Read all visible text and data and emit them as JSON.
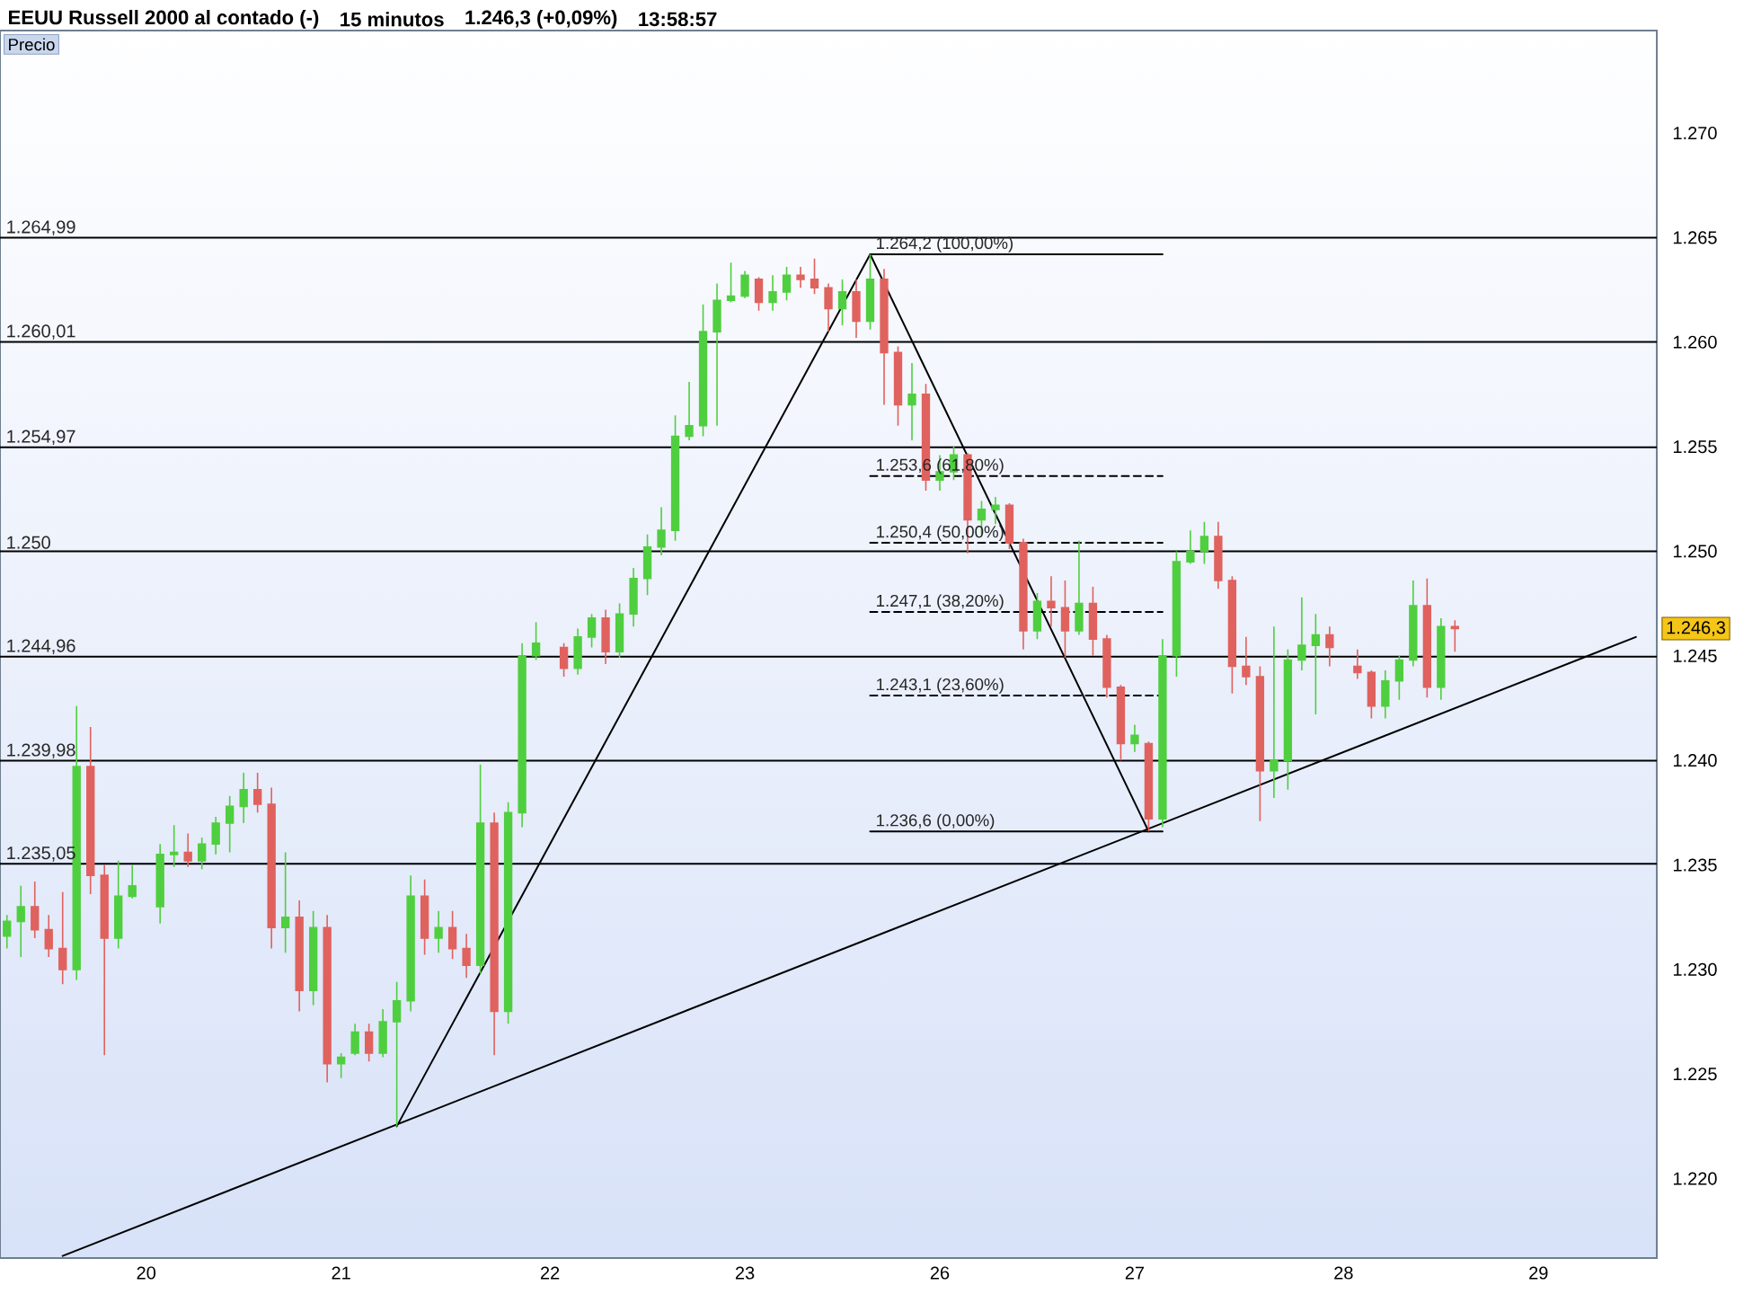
{
  "chart_data": {
    "type": "candlestick",
    "title": "EEUU Russell 2000 al contado (-)",
    "subtitle": "15 minutos",
    "ylabel": "Precio",
    "annotations": [
      "1.246,3 (+0,09%)",
      "13:58:57",
      {
        "text": "1.246,3",
        "y": 1246.3
      }
    ],
    "categories": [
      null,
      null,
      null,
      null,
      null,
      null,
      null,
      null,
      null,
      null,
      "20",
      null,
      null,
      null,
      null,
      null,
      null,
      null,
      null,
      null,
      null,
      null,
      null,
      null,
      "21",
      null,
      null,
      null,
      null,
      null,
      null,
      null,
      null,
      null,
      null,
      null,
      null,
      null,
      null,
      "22",
      null,
      null,
      null,
      null,
      null,
      null,
      null,
      null,
      null,
      null,
      null,
      null,
      null,
      "23",
      null,
      null,
      null,
      null,
      null,
      null,
      null,
      null,
      null,
      null,
      null,
      null,
      null,
      "26",
      null,
      null,
      null,
      null,
      null,
      null,
      null,
      null,
      null,
      null,
      null,
      null,
      null,
      "27",
      null,
      null,
      null,
      null,
      null,
      null,
      null,
      null,
      null,
      null,
      null,
      null,
      null,
      null,
      "28",
      null,
      null,
      null,
      null,
      null,
      null,
      null,
      null,
      null,
      null,
      null,
      null,
      null,
      "29",
      null,
      null,
      null,
      null,
      null,
      null,
      null,
      null
    ],
    "ohlc": [
      [
        1231.6,
        1232.6,
        1231.0,
        1232.3
      ],
      [
        1232.3,
        1234.0,
        1230.6,
        1233.0
      ],
      [
        1233.0,
        1234.2,
        1231.5,
        1231.9
      ],
      [
        1231.9,
        1232.6,
        1230.6,
        1231.0
      ],
      [
        1231.0,
        1233.7,
        1229.3,
        1230.0
      ],
      [
        1230.0,
        1242.6,
        1229.5,
        1239.7
      ],
      [
        1239.7,
        1241.6,
        1233.6,
        1234.5
      ],
      [
        1234.5,
        1235.0,
        1225.9,
        1231.5
      ],
      [
        1231.5,
        1235.2,
        1231.0,
        1233.5
      ],
      [
        1233.5,
        1235.0,
        1233.4,
        1234.0
      ],
      null,
      [
        1233.0,
        1236.0,
        1232.2,
        1235.5
      ],
      [
        1235.5,
        1236.9,
        1234.9,
        1235.6
      ],
      [
        1235.6,
        1236.5,
        1234.9,
        1235.2
      ],
      [
        1235.2,
        1236.3,
        1234.8,
        1236.0
      ],
      [
        1236.0,
        1237.3,
        1235.5,
        1237.0
      ],
      [
        1237.0,
        1238.3,
        1235.6,
        1237.8
      ],
      [
        1237.8,
        1239.4,
        1237.0,
        1238.6
      ],
      [
        1238.6,
        1239.4,
        1237.5,
        1237.9
      ],
      [
        1237.9,
        1238.7,
        1231.0,
        1232.0
      ],
      [
        1232.0,
        1235.6,
        1230.8,
        1232.5
      ],
      [
        1232.5,
        1233.3,
        1228.0,
        1229.0
      ],
      [
        1229.0,
        1232.8,
        1228.3,
        1232.0
      ],
      [
        1232.0,
        1232.6,
        1224.6,
        1225.5
      ],
      [
        1225.5,
        1226.0,
        1224.8,
        1225.8
      ],
      [
        1226.0,
        1227.4,
        1225.9,
        1227.0
      ],
      [
        1227.0,
        1227.4,
        1225.6,
        1226.0
      ],
      [
        1226.0,
        1228.1,
        1225.8,
        1227.5
      ],
      [
        1227.5,
        1229.4,
        1222.5,
        1228.5
      ],
      [
        1228.5,
        1234.5,
        1228.0,
        1233.5
      ],
      [
        1233.5,
        1234.3,
        1230.7,
        1231.5
      ],
      [
        1231.5,
        1232.8,
        1230.8,
        1232.0
      ],
      [
        1232.0,
        1232.8,
        1230.5,
        1231.0
      ],
      [
        1231.0,
        1231.7,
        1229.6,
        1230.2
      ],
      [
        1230.2,
        1239.8,
        1229.8,
        1237.0
      ],
      [
        1237.0,
        1237.5,
        1225.9,
        1228.0
      ],
      [
        1228.0,
        1238.0,
        1227.4,
        1237.5
      ],
      [
        1237.5,
        1245.6,
        1236.8,
        1245.0
      ],
      [
        1245.0,
        1246.6,
        1244.8,
        1245.6
      ],
      null,
      [
        1245.4,
        1245.6,
        1244.0,
        1244.4
      ],
      [
        1244.4,
        1246.3,
        1244.1,
        1245.9
      ],
      [
        1245.9,
        1247.0,
        1245.4,
        1246.8
      ],
      [
        1246.8,
        1247.2,
        1244.6,
        1245.2
      ],
      [
        1245.2,
        1247.5,
        1244.9,
        1247.0
      ],
      [
        1247.0,
        1249.2,
        1246.4,
        1248.7
      ],
      [
        1248.7,
        1250.8,
        1247.9,
        1250.2
      ],
      [
        1250.2,
        1252.1,
        1249.8,
        1251.0
      ],
      [
        1251.0,
        1256.5,
        1250.5,
        1255.5
      ],
      [
        1255.5,
        1258.1,
        1255.3,
        1256.0
      ],
      [
        1256.0,
        1261.8,
        1255.5,
        1260.5
      ],
      [
        1260.5,
        1262.8,
        1256.0,
        1262.0
      ],
      [
        1262.0,
        1263.8,
        1261.9,
        1262.2
      ],
      [
        1262.2,
        1263.4,
        1262.1,
        1263.2
      ],
      [
        1263.0,
        1263.1,
        1261.5,
        1261.9
      ],
      [
        1261.9,
        1263.2,
        1261.5,
        1262.4
      ],
      [
        1262.4,
        1263.6,
        1262.0,
        1263.2
      ],
      [
        1263.2,
        1263.6,
        1262.6,
        1263.0
      ],
      [
        1263.0,
        1264.0,
        1262.3,
        1262.6
      ],
      [
        1262.6,
        1262.8,
        1260.5,
        1261.6
      ],
      [
        1261.6,
        1263.0,
        1260.8,
        1262.4
      ],
      [
        1262.4,
        1263.0,
        1260.2,
        1261.0
      ],
      [
        1261.0,
        1264.2,
        1260.6,
        1263.0
      ],
      [
        1263.0,
        1263.5,
        1257.0,
        1259.5
      ],
      [
        1259.5,
        1259.8,
        1256.0,
        1257.0
      ],
      [
        1257.0,
        1259.0,
        1255.3,
        1257.5
      ],
      [
        1257.5,
        1258.0,
        1252.9,
        1253.4
      ],
      [
        1253.4,
        1254.6,
        1252.9,
        1253.8
      ],
      [
        1253.8,
        1255.0,
        1253.4,
        1254.6
      ],
      [
        1254.6,
        1254.7,
        1249.9,
        1251.5
      ],
      [
        1251.5,
        1252.4,
        1250.8,
        1252.0
      ],
      [
        1252.0,
        1252.6,
        1251.3,
        1252.2
      ],
      [
        1252.2,
        1252.3,
        1250.1,
        1250.4
      ],
      [
        1250.4,
        1250.6,
        1245.3,
        1246.2
      ],
      [
        1246.2,
        1248.0,
        1245.8,
        1247.6
      ],
      [
        1247.6,
        1248.8,
        1246.4,
        1247.3
      ],
      [
        1247.3,
        1248.6,
        1244.9,
        1246.2
      ],
      [
        1246.2,
        1250.5,
        1246.0,
        1247.5
      ],
      [
        1247.5,
        1248.3,
        1245.0,
        1245.8
      ],
      [
        1245.8,
        1246.0,
        1243.0,
        1243.5
      ],
      [
        1243.5,
        1243.6,
        1240.0,
        1240.8
      ],
      [
        1240.8,
        1241.7,
        1240.4,
        1241.2
      ],
      [
        1240.8,
        1240.9,
        1236.6,
        1237.2
      ],
      [
        1237.2,
        1245.8,
        1236.8,
        1245.0
      ],
      [
        1245.0,
        1250.0,
        1244.0,
        1249.5
      ],
      [
        1249.5,
        1251.0,
        1249.4,
        1250.0
      ],
      [
        1250.0,
        1251.4,
        1249.4,
        1250.7
      ],
      [
        1250.7,
        1251.4,
        1248.2,
        1248.6
      ],
      [
        1248.6,
        1248.8,
        1243.2,
        1244.5
      ],
      [
        1244.5,
        1245.9,
        1243.6,
        1244.0
      ],
      [
        1244.0,
        1244.5,
        1237.1,
        1239.5
      ],
      [
        1239.5,
        1246.4,
        1238.2,
        1240.0
      ],
      [
        1240.0,
        1245.3,
        1238.6,
        1244.8
      ],
      [
        1244.8,
        1247.8,
        1244.3,
        1245.5
      ],
      [
        1245.5,
        1247.0,
        1242.2,
        1246.0
      ],
      [
        1246.0,
        1246.4,
        1244.5,
        1245.4
      ],
      null,
      [
        1244.5,
        1245.3,
        1243.9,
        1244.2
      ],
      [
        1244.2,
        1244.3,
        1242.0,
        1242.6
      ],
      [
        1242.6,
        1244.3,
        1242.0,
        1243.8
      ],
      [
        1243.8,
        1245.0,
        1242.9,
        1244.8
      ],
      [
        1244.8,
        1248.6,
        1244.5,
        1247.4
      ],
      [
        1247.4,
        1248.7,
        1243.0,
        1243.5
      ],
      [
        1243.5,
        1246.8,
        1242.9,
        1246.4
      ],
      [
        1246.4,
        1246.7,
        1245.2,
        1246.3
      ],
      null,
      null,
      null,
      null,
      null,
      null,
      null,
      null,
      null,
      null,
      null,
      null,
      null,
      null
    ],
    "colors": [
      "#4fcf3f",
      "#4fcf3f",
      "#e0625e",
      "#e0625e",
      "#e0625e",
      "#4fcf3f",
      "#e0625e",
      "#e0625e",
      "#4fcf3f",
      "#4fcf3f",
      null,
      "#4fcf3f",
      "#4fcf3f",
      "#e0625e",
      "#4fcf3f",
      "#4fcf3f",
      "#4fcf3f",
      "#4fcf3f",
      "#e0625e",
      "#e0625e",
      "#4fcf3f",
      "#e0625e",
      "#4fcf3f",
      "#e0625e",
      "#4fcf3f",
      "#4fcf3f",
      "#e0625e",
      "#4fcf3f",
      "#4fcf3f",
      "#4fcf3f",
      "#e0625e",
      "#4fcf3f",
      "#e0625e",
      "#e0625e",
      "#4fcf3f",
      "#e0625e",
      "#4fcf3f",
      "#4fcf3f",
      "#4fcf3f",
      null,
      "#e0625e",
      "#4fcf3f",
      "#4fcf3f",
      "#e0625e",
      "#4fcf3f",
      "#4fcf3f",
      "#4fcf3f",
      "#4fcf3f",
      "#4fcf3f",
      "#4fcf3f",
      "#4fcf3f",
      "#4fcf3f",
      "#4fcf3f",
      "#4fcf3f",
      "#e0625e",
      "#4fcf3f",
      "#4fcf3f",
      "#e0625e",
      "#e0625e",
      "#e0625e",
      "#4fcf3f",
      "#e0625e",
      "#4fcf3f",
      "#e0625e",
      "#e0625e",
      "#4fcf3f",
      "#e0625e",
      "#4fcf3f",
      "#4fcf3f",
      "#e0625e",
      "#4fcf3f",
      "#4fcf3f",
      "#e0625e",
      "#e0625e",
      "#4fcf3f",
      "#e0625e",
      "#e0625e",
      "#4fcf3f",
      "#e0625e",
      "#e0625e",
      "#e0625e",
      "#4fcf3f",
      "#e0625e",
      "#4fcf3f",
      "#4fcf3f",
      "#4fcf3f",
      "#4fcf3f",
      "#e0625e",
      "#e0625e",
      "#e0625e",
      "#e0625e",
      "#4fcf3f",
      "#4fcf3f",
      "#4fcf3f",
      "#4fcf3f",
      "#e0625e",
      null,
      "#e0625e",
      "#e0625e",
      "#4fcf3f",
      "#4fcf3f",
      "#4fcf3f",
      "#e0625e",
      "#4fcf3f",
      "#e0625e",
      null,
      null,
      null,
      null,
      null,
      null,
      null,
      null,
      null,
      null,
      null,
      null,
      null,
      null
    ],
    "series": [
      {
        "type": "line",
        "color": "#000000",
        "line_style": "solid",
        "values": [
          null,
          null,
          null,
          null,
          1216.3,
          null,
          null,
          null,
          null,
          null,
          null,
          null,
          null,
          null,
          null,
          null,
          null,
          null,
          null,
          null,
          null,
          null,
          null,
          null,
          null,
          null,
          null,
          null,
          null,
          null,
          null,
          null,
          null,
          null,
          null,
          null,
          null,
          null,
          null,
          null,
          null,
          null,
          null,
          null,
          null,
          null,
          null,
          null,
          null,
          null,
          null,
          null,
          null,
          null,
          null,
          null,
          null,
          null,
          null,
          null,
          null,
          null,
          null,
          null,
          null,
          null,
          null,
          null,
          null,
          null,
          null,
          null,
          null,
          null,
          null,
          null,
          null,
          null,
          null,
          null,
          null,
          null,
          null,
          null,
          null,
          null,
          null,
          null,
          null,
          null,
          null,
          null,
          null,
          null,
          null,
          null,
          null,
          null,
          null,
          null,
          null,
          null,
          null,
          null,
          null,
          null,
          null,
          null,
          null,
          null,
          null,
          null,
          null,
          null,
          null,
          null,
          null,
          1245.9,
          null
        ]
      },
      {
        "type": "line",
        "color": "#000000",
        "line_style": "solid",
        "values": [
          null,
          null,
          null,
          null,
          null,
          null,
          null,
          null,
          null,
          null,
          null,
          null,
          null,
          null,
          null,
          null,
          null,
          null,
          null,
          null,
          null,
          null,
          null,
          null,
          null,
          null,
          null,
          null,
          1222.5,
          null,
          null,
          null,
          null,
          null,
          null,
          null,
          null,
          null,
          null,
          null,
          null,
          null,
          null,
          null,
          null,
          null,
          null,
          null,
          null,
          null,
          null,
          null,
          null,
          null,
          null,
          null,
          null,
          null,
          null,
          null,
          null,
          null,
          1264.2,
          null,
          null,
          null,
          null,
          null,
          null,
          null,
          null,
          null,
          null,
          null,
          null,
          null,
          null,
          null,
          null,
          null,
          null,
          null,
          1236.6,
          null,
          null,
          null,
          null,
          null,
          null,
          null,
          null,
          null,
          null,
          null,
          null,
          null,
          null,
          null,
          null,
          null,
          null,
          null,
          null,
          null,
          null,
          null,
          null,
          null,
          null,
          null,
          null,
          null,
          null,
          null,
          null,
          null,
          null,
          null,
          null
        ]
      },
      {
        "type": "line",
        "name": "1.264,2 (100,00%)",
        "color": "#000000",
        "line_style": "solid",
        "values": [
          null,
          null,
          null,
          null,
          null,
          null,
          null,
          null,
          null,
          null,
          null,
          null,
          null,
          null,
          null,
          null,
          null,
          null,
          null,
          null,
          null,
          null,
          null,
          null,
          null,
          null,
          null,
          null,
          null,
          null,
          null,
          null,
          null,
          null,
          null,
          null,
          null,
          null,
          null,
          null,
          null,
          null,
          null,
          null,
          null,
          null,
          null,
          null,
          null,
          null,
          null,
          null,
          null,
          null,
          null,
          null,
          null,
          null,
          null,
          null,
          null,
          null,
          1264.2,
          null,
          null,
          null,
          null,
          null,
          null,
          null,
          null,
          null,
          null,
          null,
          null,
          null,
          null,
          null,
          null,
          null,
          null,
          null,
          null,
          1264.2,
          null,
          null,
          null,
          null,
          null,
          null,
          null,
          null,
          null,
          null,
          null,
          null,
          null,
          null,
          null,
          null,
          null,
          null,
          null,
          null,
          null,
          null,
          null,
          null,
          null,
          null,
          null,
          null,
          null,
          null,
          null,
          null,
          null,
          null,
          null
        ]
      },
      {
        "type": "line",
        "name": "1.253,6 (61,80%)",
        "color": "#000000",
        "line_style": "dashed",
        "values": [
          null,
          null,
          null,
          null,
          null,
          null,
          null,
          null,
          null,
          null,
          null,
          null,
          null,
          null,
          null,
          null,
          null,
          null,
          null,
          null,
          null,
          null,
          null,
          null,
          null,
          null,
          null,
          null,
          null,
          null,
          null,
          null,
          null,
          null,
          null,
          null,
          null,
          null,
          null,
          null,
          null,
          null,
          null,
          null,
          null,
          null,
          null,
          null,
          null,
          null,
          null,
          null,
          null,
          null,
          null,
          null,
          null,
          null,
          null,
          null,
          null,
          null,
          1253.6,
          null,
          null,
          null,
          null,
          null,
          null,
          null,
          null,
          null,
          null,
          null,
          null,
          null,
          null,
          null,
          null,
          null,
          null,
          null,
          null,
          1253.6,
          null,
          null,
          null,
          null,
          null,
          null,
          null,
          null,
          null,
          null,
          null,
          null,
          null,
          null,
          null,
          null,
          null,
          null,
          null,
          null,
          null,
          null,
          null,
          null,
          null,
          null,
          null,
          null,
          null,
          null,
          null,
          null,
          null,
          null,
          null
        ]
      },
      {
        "type": "line",
        "name": "1.250,4 (50,00%)",
        "color": "#000000",
        "line_style": "dashed",
        "values": [
          null,
          null,
          null,
          null,
          null,
          null,
          null,
          null,
          null,
          null,
          null,
          null,
          null,
          null,
          null,
          null,
          null,
          null,
          null,
          null,
          null,
          null,
          null,
          null,
          null,
          null,
          null,
          null,
          null,
          null,
          null,
          null,
          null,
          null,
          null,
          null,
          null,
          null,
          null,
          null,
          null,
          null,
          null,
          null,
          null,
          null,
          null,
          null,
          null,
          null,
          null,
          null,
          null,
          null,
          null,
          null,
          null,
          null,
          null,
          null,
          null,
          null,
          1250.4,
          null,
          null,
          null,
          null,
          null,
          null,
          null,
          null,
          null,
          null,
          null,
          null,
          null,
          null,
          null,
          null,
          null,
          null,
          null,
          null,
          1250.4,
          null,
          null,
          null,
          null,
          null,
          null,
          null,
          null,
          null,
          null,
          null,
          null,
          null,
          null,
          null,
          null,
          null,
          null,
          null,
          null,
          null,
          null,
          null,
          null,
          null,
          null,
          null,
          null,
          null,
          null,
          null,
          null,
          null,
          null,
          null
        ]
      },
      {
        "type": "line",
        "name": "1.247,1 (38,20%)",
        "color": "#000000",
        "line_style": "dashed",
        "values": [
          null,
          null,
          null,
          null,
          null,
          null,
          null,
          null,
          null,
          null,
          null,
          null,
          null,
          null,
          null,
          null,
          null,
          null,
          null,
          null,
          null,
          null,
          null,
          null,
          null,
          null,
          null,
          null,
          null,
          null,
          null,
          null,
          null,
          null,
          null,
          null,
          null,
          null,
          null,
          null,
          null,
          null,
          null,
          null,
          null,
          null,
          null,
          null,
          null,
          null,
          null,
          null,
          null,
          null,
          null,
          null,
          null,
          null,
          null,
          null,
          null,
          null,
          1247.1,
          null,
          null,
          null,
          null,
          null,
          null,
          null,
          null,
          null,
          null,
          null,
          null,
          null,
          null,
          null,
          null,
          null,
          null,
          null,
          null,
          1247.1,
          null,
          null,
          null,
          null,
          null,
          null,
          null,
          null,
          null,
          null,
          null,
          null,
          null,
          null,
          null,
          null,
          null,
          null,
          null,
          null,
          null,
          null,
          null,
          null,
          null,
          null,
          null,
          null,
          null,
          null,
          null,
          null,
          null,
          null,
          null
        ]
      },
      {
        "type": "line",
        "name": "1.243,1 (23,60%)",
        "color": "#000000",
        "line_style": "dashed",
        "values": [
          null,
          null,
          null,
          null,
          null,
          null,
          null,
          null,
          null,
          null,
          null,
          null,
          null,
          null,
          null,
          null,
          null,
          null,
          null,
          null,
          null,
          null,
          null,
          null,
          null,
          null,
          null,
          null,
          null,
          null,
          null,
          null,
          null,
          null,
          null,
          null,
          null,
          null,
          null,
          null,
          null,
          null,
          null,
          null,
          null,
          null,
          null,
          null,
          null,
          null,
          null,
          null,
          null,
          null,
          null,
          null,
          null,
          null,
          null,
          null,
          null,
          null,
          1243.1,
          null,
          null,
          null,
          null,
          null,
          null,
          null,
          null,
          null,
          null,
          null,
          null,
          null,
          null,
          null,
          null,
          null,
          null,
          null,
          null,
          1243.1,
          null,
          null,
          null,
          null,
          null,
          null,
          null,
          null,
          null,
          null,
          null,
          null,
          null,
          null,
          null,
          null,
          null,
          null,
          null,
          null,
          null,
          null,
          null,
          null,
          null,
          null,
          null,
          null,
          null,
          null,
          null,
          null,
          null,
          null,
          null
        ]
      },
      {
        "type": "line",
        "name": "1.236,6 (0,00%)",
        "color": "#000000",
        "line_style": "solid",
        "values": [
          null,
          null,
          null,
          null,
          null,
          null,
          null,
          null,
          null,
          null,
          null,
          null,
          null,
          null,
          null,
          null,
          null,
          null,
          null,
          null,
          null,
          null,
          null,
          null,
          null,
          null,
          null,
          null,
          null,
          null,
          null,
          null,
          null,
          null,
          null,
          null,
          null,
          null,
          null,
          null,
          null,
          null,
          null,
          null,
          null,
          null,
          null,
          null,
          null,
          null,
          null,
          null,
          null,
          null,
          null,
          null,
          null,
          null,
          null,
          null,
          null,
          null,
          1236.6,
          null,
          null,
          null,
          null,
          null,
          null,
          null,
          null,
          null,
          null,
          null,
          null,
          null,
          null,
          null,
          null,
          null,
          null,
          null,
          null,
          1236.6,
          null,
          null,
          null,
          null,
          null,
          null,
          null,
          null,
          null,
          null,
          null,
          null,
          null,
          null,
          null,
          null,
          null,
          null,
          null,
          null,
          null,
          null,
          null,
          null,
          null,
          null,
          null,
          null,
          null,
          null,
          null,
          null,
          null,
          null,
          null
        ]
      }
    ],
    "ref_lines": [
      {
        "axis": "y",
        "value": 1264.99,
        "label": "1.264,99",
        "color": "#000000"
      },
      {
        "axis": "y",
        "value": 1260.01,
        "label": "1.260,01",
        "color": "#000000"
      },
      {
        "axis": "y",
        "value": 1254.97,
        "label": "1.254,97",
        "color": "#000000"
      },
      {
        "axis": "y",
        "value": 1250,
        "label": "1.250",
        "color": "#000000"
      },
      {
        "axis": "y",
        "value": 1244.96,
        "label": "1.244,96",
        "color": "#000000"
      },
      {
        "axis": "y",
        "value": 1239.98,
        "label": "1.239,98",
        "color": "#000000"
      },
      {
        "axis": "y",
        "value": 1235.05,
        "label": "1.235,05",
        "color": "#000000"
      }
    ],
    "ylim": [
      1216.2,
      1274.9
    ],
    "yticks": [
      {
        "value": 1220,
        "label": "1.220"
      },
      {
        "value": 1225,
        "label": "1.225"
      },
      {
        "value": 1230,
        "label": "1.230"
      },
      {
        "value": 1235,
        "label": "1.235"
      },
      {
        "value": 1240,
        "label": "1.240"
      },
      {
        "value": 1245,
        "label": "1.245"
      },
      {
        "value": 1250,
        "label": "1.250"
      },
      {
        "value": 1255,
        "label": "1.255"
      },
      {
        "value": 1260,
        "label": "1.260"
      },
      {
        "value": 1265,
        "label": "1.265"
      },
      {
        "value": 1270,
        "label": "1.270"
      }
    ],
    "grid": false
  }
}
